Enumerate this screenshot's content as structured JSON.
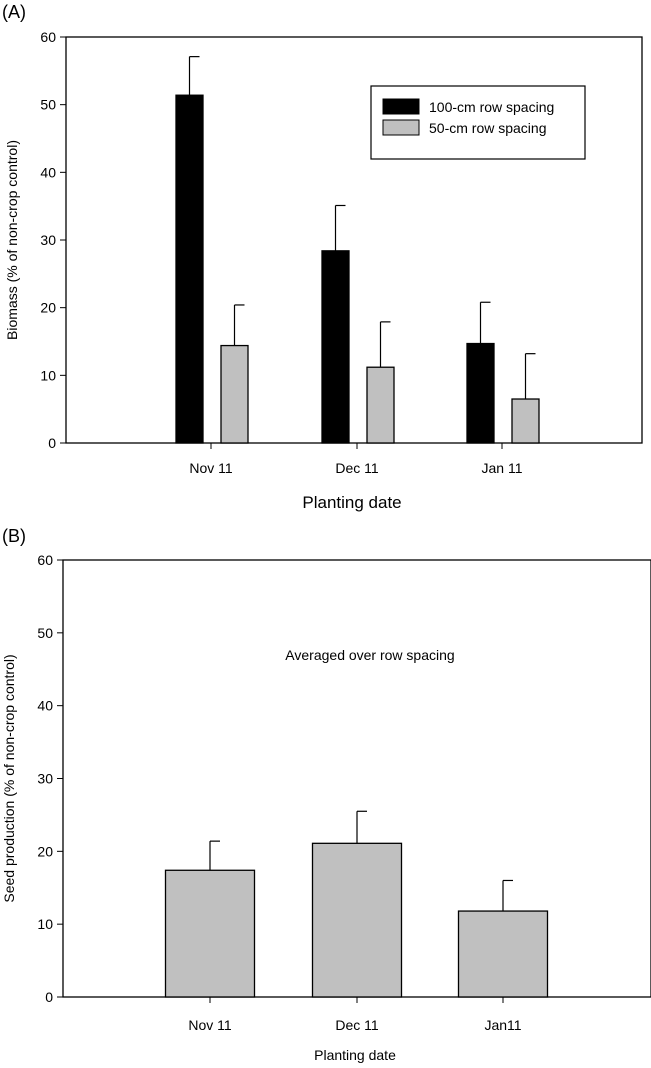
{
  "chart_data": [
    {
      "type": "bar",
      "panel_label": "(A)",
      "title": "",
      "xlabel": "Planting date",
      "ylabel": "Biomass (% of non-crop control)",
      "ylim": [
        0,
        60
      ],
      "yticks": [
        0,
        10,
        20,
        30,
        40,
        50,
        60
      ],
      "categories": [
        "Nov 11",
        "Dec 11",
        "Jan 11"
      ],
      "legend_position": "top-right",
      "series": [
        {
          "name": "100-cm row spacing",
          "color": "#000000",
          "values": [
            51.4,
            28.4,
            14.7
          ],
          "error_upper": [
            57.1,
            35.1,
            20.8
          ]
        },
        {
          "name": "50-cm row spacing",
          "color": "#c0c0c0",
          "values": [
            14.4,
            11.2,
            6.5
          ],
          "error_upper": [
            20.4,
            17.9,
            13.2
          ]
        }
      ],
      "grid": false
    },
    {
      "type": "bar",
      "panel_label": "(B)",
      "title": "",
      "annotation": "Averaged over row spacing",
      "xlabel": "Planting date",
      "ylabel": "Seed production (% of non-crop control)",
      "ylim": [
        0,
        60
      ],
      "yticks": [
        0,
        10,
        20,
        30,
        40,
        50,
        60
      ],
      "categories": [
        "Nov 11",
        "Dec 11",
        "Jan11"
      ],
      "series": [
        {
          "name": "Seed production",
          "color": "#c0c0c0",
          "values": [
            17.4,
            21.1,
            11.8
          ],
          "error_upper": [
            21.4,
            25.5,
            16.0
          ]
        }
      ],
      "grid": false
    }
  ]
}
